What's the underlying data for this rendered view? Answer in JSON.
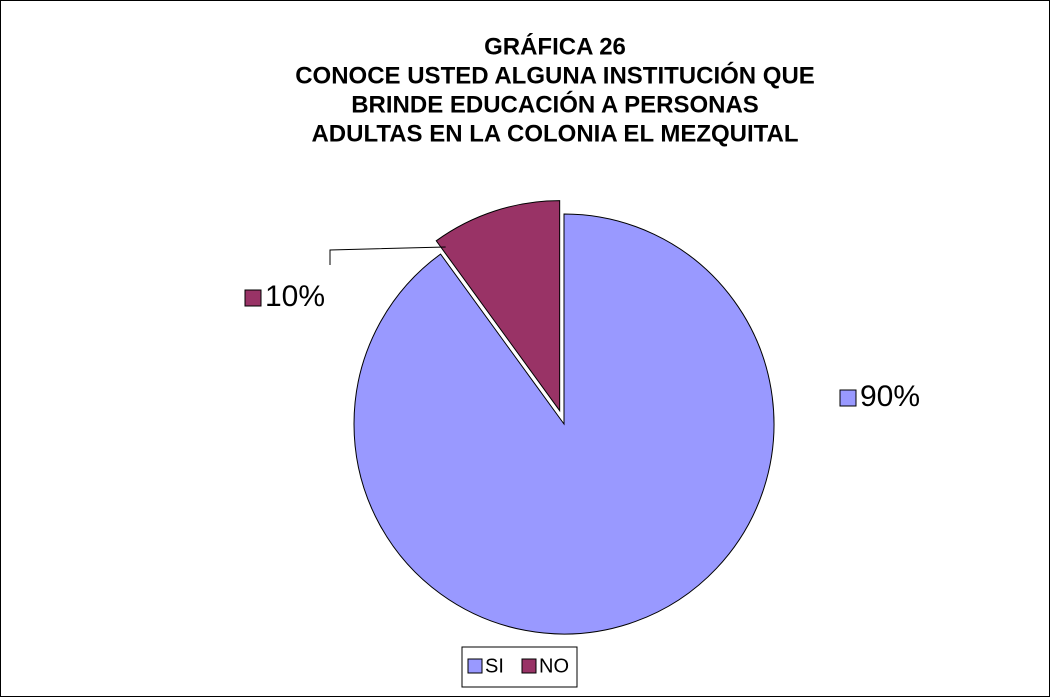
{
  "chart_data": {
    "type": "pie",
    "title": [
      "GRÁFICA 26",
      "CONOCE USTED ALGUNA INSTITUCIÓN QUE",
      "BRINDE EDUCACIÓN A PERSONAS",
      "ADULTAS EN LA COLONIA EL MEZQUITAL"
    ],
    "categories": [
      "SI",
      "NO"
    ],
    "values": [
      90,
      10
    ],
    "value_labels": [
      "90%",
      "10%"
    ],
    "colors": [
      "#9999ff",
      "#993366"
    ],
    "legend": "bottom"
  }
}
